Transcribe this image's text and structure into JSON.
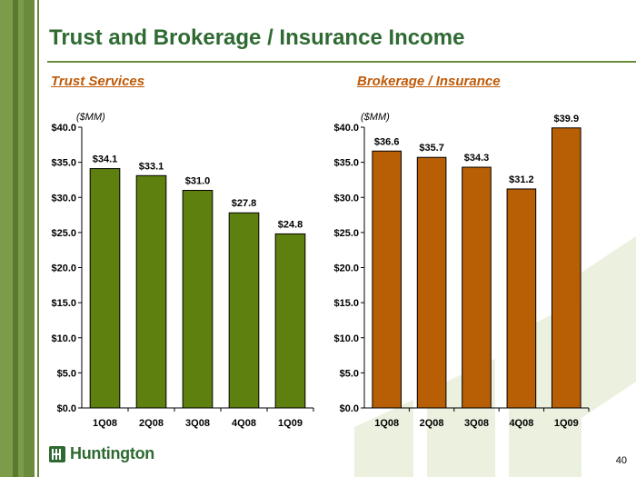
{
  "slide": {
    "title": "Trust and Brokerage / Insurance Income",
    "page_number": "40",
    "logo_text": "Huntington"
  },
  "colors": {
    "trust": "#5e800e",
    "brokerage": "#b85e05",
    "title": "#2e6a32",
    "subtitle_trust": "#c05a08",
    "subtitle_brokerage": "#c05a08"
  },
  "chart_data": [
    {
      "type": "bar",
      "title": "Trust Services",
      "unit_label": "($MM)",
      "categories": [
        "1Q08",
        "2Q08",
        "3Q08",
        "4Q08",
        "1Q09"
      ],
      "values": [
        34.1,
        33.1,
        31.0,
        27.8,
        24.8
      ],
      "data_labels": [
        "$34.1",
        "$33.1",
        "$31.0",
        "$27.8",
        "$24.8"
      ],
      "ylim": [
        0,
        40
      ],
      "yticks": [
        0,
        5,
        10,
        15,
        20,
        25,
        30,
        35,
        40
      ],
      "ytick_labels": [
        "$0.0",
        "$5.0",
        "$10.0",
        "$15.0",
        "$20.0",
        "$25.0",
        "$30.0",
        "$35.0",
        "$40.0"
      ],
      "grid": false
    },
    {
      "type": "bar",
      "title": "Brokerage / Insurance",
      "unit_label": "($MM)",
      "categories": [
        "1Q08",
        "2Q08",
        "3Q08",
        "4Q08",
        "1Q09"
      ],
      "values": [
        36.6,
        35.7,
        34.3,
        31.2,
        39.9
      ],
      "data_labels": [
        "$36.6",
        "$35.7",
        "$34.3",
        "$31.2",
        "$39.9"
      ],
      "ylim": [
        0,
        40
      ],
      "yticks": [
        0,
        5,
        10,
        15,
        20,
        25,
        30,
        35,
        40
      ],
      "ytick_labels": [
        "$0.0",
        "$5.0",
        "$10.0",
        "$15.0",
        "$20.0",
        "$25.0",
        "$30.0",
        "$35.0",
        "$40.0"
      ],
      "grid": false
    }
  ]
}
